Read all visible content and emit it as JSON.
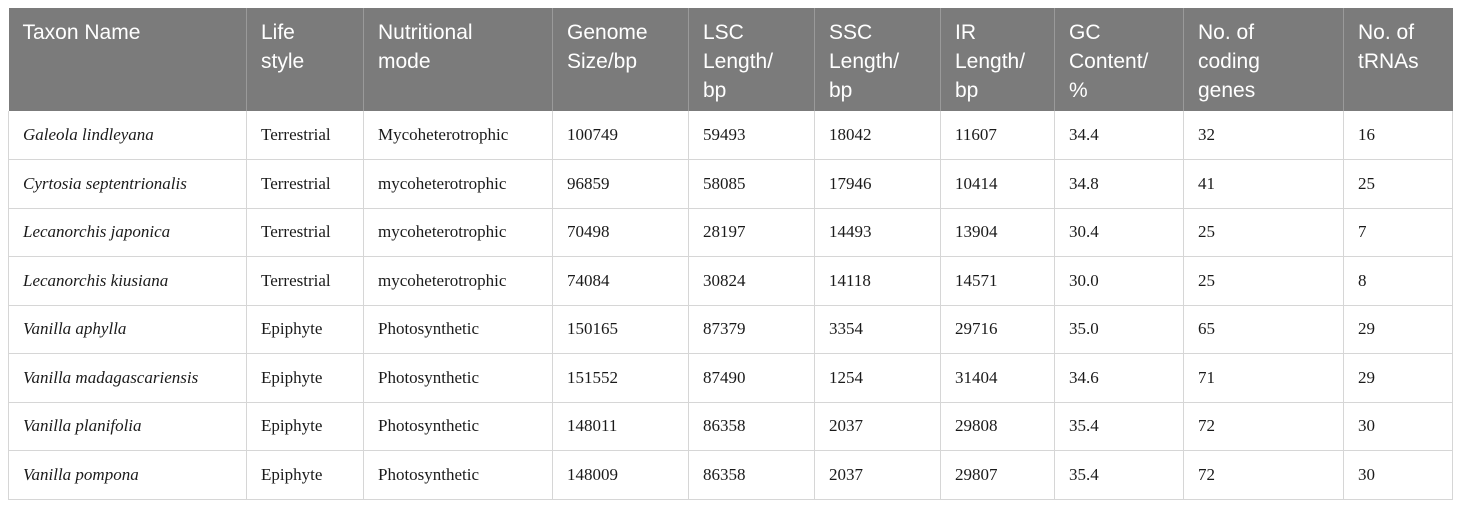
{
  "columns": [
    [
      "Taxon Name"
    ],
    [
      "Life",
      "style"
    ],
    [
      "Nutritional",
      "mode"
    ],
    [
      "Genome",
      "Size/bp"
    ],
    [
      "LSC",
      "Length/",
      "bp"
    ],
    [
      "SSC",
      "Length/",
      "bp"
    ],
    [
      "IR",
      "Length/",
      "bp"
    ],
    [
      "GC",
      "Content/",
      "%"
    ],
    [
      "No. of",
      "coding",
      "genes"
    ],
    [
      "No. of",
      "tRNAs"
    ]
  ],
  "rows": [
    [
      "Galeola lindleyana",
      "Terrestrial",
      "Mycoheterotrophic",
      "100749",
      "59493",
      "18042",
      "11607",
      "34.4",
      "32",
      "16"
    ],
    [
      "Cyrtosia septentrionalis",
      "Terrestrial",
      "mycoheterotrophic",
      "96859",
      "58085",
      "17946",
      "10414",
      "34.8",
      "41",
      "25"
    ],
    [
      "Lecanorchis japonica",
      "Terrestrial",
      "mycoheterotrophic",
      "70498",
      "28197",
      "14493",
      "13904",
      "30.4",
      "25",
      "7"
    ],
    [
      "Lecanorchis kiusiana",
      "Terrestrial",
      "mycoheterotrophic",
      "74084",
      "30824",
      "14118",
      "14571",
      "30.0",
      "25",
      "8"
    ],
    [
      "Vanilla aphylla",
      "Epiphyte",
      "Photosynthetic",
      "150165",
      "87379",
      "3354",
      "29716",
      "35.0",
      "65",
      "29"
    ],
    [
      "Vanilla madagascariensis",
      "Epiphyte",
      "Photosynthetic",
      "151552",
      "87490",
      "1254",
      "31404",
      "34.6",
      "71",
      "29"
    ],
    [
      "Vanilla planifolia",
      "Epiphyte",
      "Photosynthetic",
      "148011",
      "86358",
      "2037",
      "29808",
      "35.4",
      "72",
      "30"
    ],
    [
      "Vanilla pompona",
      "Epiphyte",
      "Photosynthetic",
      "148009",
      "86358",
      "2037",
      "29807",
      "35.4",
      "72",
      "30"
    ]
  ],
  "colors": {
    "header_bg": "#7b7b7b",
    "header_text": "#ffffff",
    "grid": "#d6d6d6"
  }
}
